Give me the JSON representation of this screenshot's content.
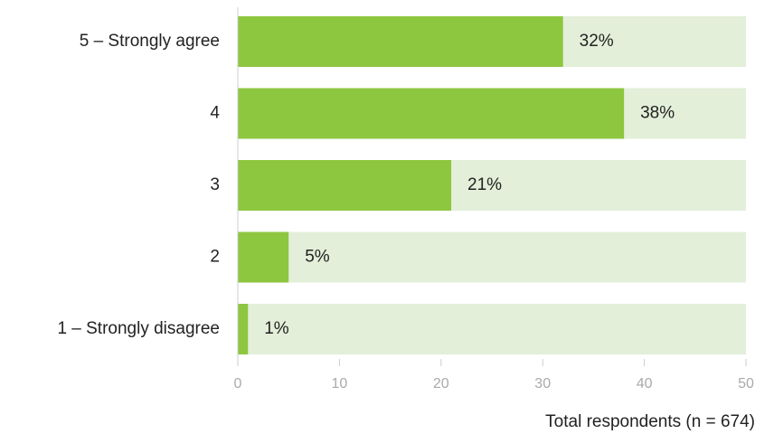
{
  "chart_data": {
    "type": "bar",
    "orientation": "horizontal",
    "categories": [
      "5 – Strongly agree",
      "4",
      "3",
      "2",
      "1 – Strongly disagree"
    ],
    "values": [
      32,
      38,
      21,
      5,
      1
    ],
    "value_labels": [
      "32%",
      "38%",
      "21%",
      "5%",
      "1%"
    ],
    "xlim": [
      0,
      50
    ],
    "xticks": [
      0,
      10,
      20,
      30,
      40,
      50
    ],
    "xtick_labels": [
      "0",
      "10",
      "20",
      "30",
      "40",
      "50"
    ],
    "title": "",
    "xlabel": "",
    "ylabel": "",
    "grid": false,
    "legend": "none",
    "note": "Total respondents (n = 674)",
    "colors": {
      "bar": "#8dc63f",
      "track": "#e3efd9",
      "axis": "#cccccc",
      "tick_text": "#aaaaaa",
      "text": "#222222"
    }
  }
}
